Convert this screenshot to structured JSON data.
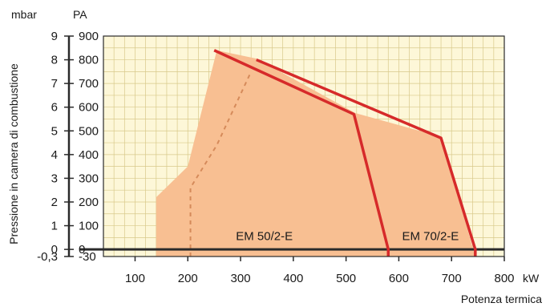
{
  "chart_data": {
    "type": "area",
    "title": "",
    "xlabel": "Potenza termica",
    "x_unit": "kW",
    "ylabel": "Pressione in camera di combustione",
    "y_left_unit": "mbar",
    "y_right_unit": "PA",
    "xlim": [
      40,
      800
    ],
    "ylim": [
      -0.3,
      9
    ],
    "x_ticks": [
      100,
      200,
      300,
      400,
      500,
      600,
      700,
      800
    ],
    "x_tick_labels": [
      "100",
      "200",
      "300",
      "400",
      "500",
      "600",
      "700",
      "800"
    ],
    "y_ticks": [
      -0.3,
      0,
      1,
      2,
      3,
      4,
      5,
      6,
      7,
      8,
      9
    ],
    "y_tick_labels_mbar": [
      "-0,3",
      "0",
      "1",
      "2",
      "3",
      "4",
      "5",
      "6",
      "7",
      "8",
      "9"
    ],
    "y_tick_labels_pa": [
      "-30",
      "0",
      "100",
      "200",
      "300",
      "400",
      "500",
      "600",
      "700",
      "800",
      "900"
    ],
    "grid": true,
    "colors": {
      "background": "#fdf7d8",
      "grid": "#d8c98a",
      "area": "#f8bf92",
      "curve": "#d62a2a",
      "dashed": "#d58a5a",
      "axis": "#2a2a2a"
    },
    "working_field": [
      {
        "x": 140,
        "y": -0.3
      },
      {
        "x": 140,
        "y": 2.2
      },
      {
        "x": 200,
        "y": 3.5
      },
      {
        "x": 255,
        "y": 8.4
      },
      {
        "x": 330,
        "y": 8.05
      },
      {
        "x": 518,
        "y": 5.75
      },
      {
        "x": 680,
        "y": 4.75
      },
      {
        "x": 745,
        "y": -0.3
      }
    ],
    "series": [
      {
        "name": "EM 50/2-E",
        "points": [
          {
            "x": 250,
            "y": 8.4
          },
          {
            "x": 515,
            "y": 5.7
          },
          {
            "x": 580,
            "y": 0
          },
          {
            "x": 580,
            "y": -0.3
          }
        ]
      },
      {
        "name": "EM 70/2-E",
        "points": [
          {
            "x": 330,
            "y": 8.0
          },
          {
            "x": 680,
            "y": 4.7
          },
          {
            "x": 745,
            "y": 0
          },
          {
            "x": 745,
            "y": -0.3
          }
        ]
      }
    ],
    "dashed_line": [
      {
        "x": 205,
        "y": -0.3
      },
      {
        "x": 205,
        "y": 2.6
      },
      {
        "x": 255,
        "y": 4.4
      },
      {
        "x": 320,
        "y": 7.5
      }
    ],
    "zero_line_y": 0,
    "label_positions": [
      {
        "text": "EM 50/2-E",
        "x": 345,
        "y": 0.4
      },
      {
        "text": "EM 70/2-E",
        "x": 660,
        "y": 0.4
      }
    ]
  }
}
